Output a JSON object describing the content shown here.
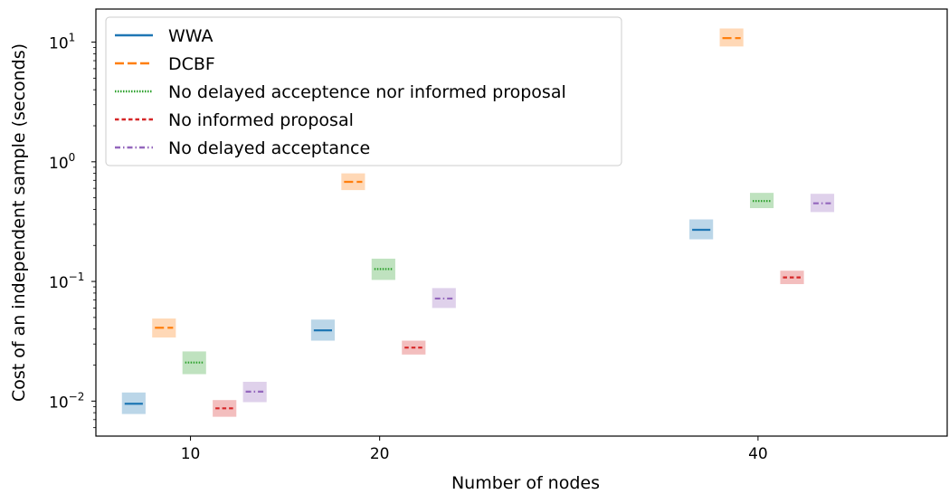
{
  "chart_data": {
    "type": "scatter",
    "title": "",
    "xlabel": "Number of nodes",
    "ylabel": "Cost of an independent sample (seconds)",
    "yscale": "log",
    "xlim": [
      5,
      50
    ],
    "ylim": [
      0.0051,
      18.9
    ],
    "x_ticks": [
      10,
      20,
      40
    ],
    "x_tick_labels": [
      "10",
      "20",
      "40"
    ],
    "y_ticks": [
      0.01,
      0.1,
      1,
      10
    ],
    "y_tick_bases": [
      "10",
      "10",
      "10",
      "10"
    ],
    "y_tick_exponents": [
      "−2",
      "−1",
      "0",
      "1"
    ],
    "legend_position": "upper-left",
    "grid": false,
    "box_width": 1.25,
    "series": [
      {
        "name": "WWA",
        "color": "#1f77b4",
        "dash": "solid",
        "points": [
          {
            "x": 7,
            "y": 0.0095,
            "low": 0.0078,
            "high": 0.0118
          },
          {
            "x": 17,
            "y": 0.039,
            "low": 0.032,
            "high": 0.048
          },
          {
            "x": 37,
            "y": 0.27,
            "low": 0.225,
            "high": 0.33
          }
        ]
      },
      {
        "name": "DCBF",
        "color": "#ff7f0e",
        "dash": "dashed",
        "points": [
          {
            "x": 8.6,
            "y": 0.041,
            "low": 0.034,
            "high": 0.049
          },
          {
            "x": 18.6,
            "y": 0.68,
            "low": 0.58,
            "high": 0.8
          },
          {
            "x": 38.6,
            "y": 10.8,
            "low": 9.2,
            "high": 13.0
          }
        ]
      },
      {
        "name": "No delayed acceptence nor informed proposal",
        "color": "#2ca02c",
        "dash": "dotted",
        "points": [
          {
            "x": 10.2,
            "y": 0.021,
            "low": 0.0168,
            "high": 0.026
          },
          {
            "x": 20.2,
            "y": 0.127,
            "low": 0.103,
            "high": 0.155
          },
          {
            "x": 40.2,
            "y": 0.47,
            "low": 0.41,
            "high": 0.55
          }
        ]
      },
      {
        "name": "No informed proposal",
        "color": "#d62728",
        "dash": "short-dashed",
        "points": [
          {
            "x": 11.8,
            "y": 0.0087,
            "low": 0.0074,
            "high": 0.0102
          },
          {
            "x": 21.8,
            "y": 0.028,
            "low": 0.0245,
            "high": 0.032
          },
          {
            "x": 41.8,
            "y": 0.108,
            "low": 0.095,
            "high": 0.123
          }
        ]
      },
      {
        "name": "No delayed acceptance",
        "color": "#9467bd",
        "dash": "dash-dot",
        "points": [
          {
            "x": 13.4,
            "y": 0.012,
            "low": 0.0098,
            "high": 0.0145
          },
          {
            "x": 23.4,
            "y": 0.072,
            "low": 0.06,
            "high": 0.088
          },
          {
            "x": 43.4,
            "y": 0.45,
            "low": 0.38,
            "high": 0.54
          }
        ]
      }
    ]
  }
}
